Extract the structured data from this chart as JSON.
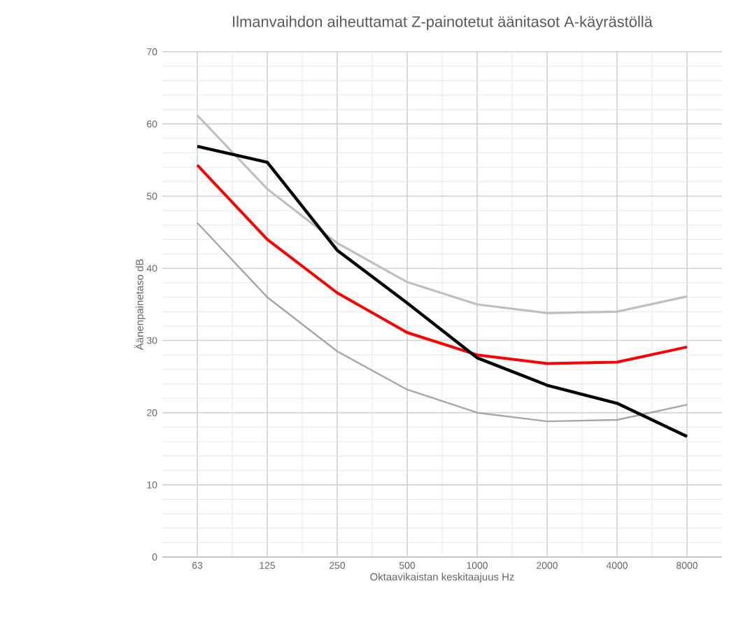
{
  "chart_data": {
    "type": "line",
    "title": "Ilmanvaihdon aiheuttamat Z-painotetut äänitasot A-käyrästöllä",
    "xlabel": "Oktaavikaistan keskitaajuus Hz",
    "ylabel": "Äänenpainetaso dB",
    "categories": [
      "63",
      "125",
      "250",
      "500",
      "1000",
      "2000",
      "4000",
      "8000"
    ],
    "series": [
      {
        "color": "#bfbfbf",
        "values": [
          61.2,
          51,
          43.5,
          38.1,
          35,
          33.8,
          34,
          36.1
        ]
      },
      {
        "color": "#a6a6a6",
        "values": [
          46.3,
          36,
          28.5,
          23.2,
          20,
          18.8,
          19,
          21.1
        ]
      },
      {
        "color": "#ff0000",
        "values": [
          54.3,
          44,
          36.6,
          31.1,
          28,
          26.8,
          27,
          29.1
        ]
      },
      {
        "color": "#000000",
        "values": [
          56.9,
          54.7,
          42.5,
          35.2,
          27.6,
          23.8,
          21.3,
          16.7
        ]
      }
    ],
    "ylim": [
      0,
      70
    ],
    "yticks": [
      0,
      10,
      20,
      30,
      40,
      50,
      60,
      70
    ],
    "grid": true,
    "marker": "none",
    "line_style": "solid"
  }
}
